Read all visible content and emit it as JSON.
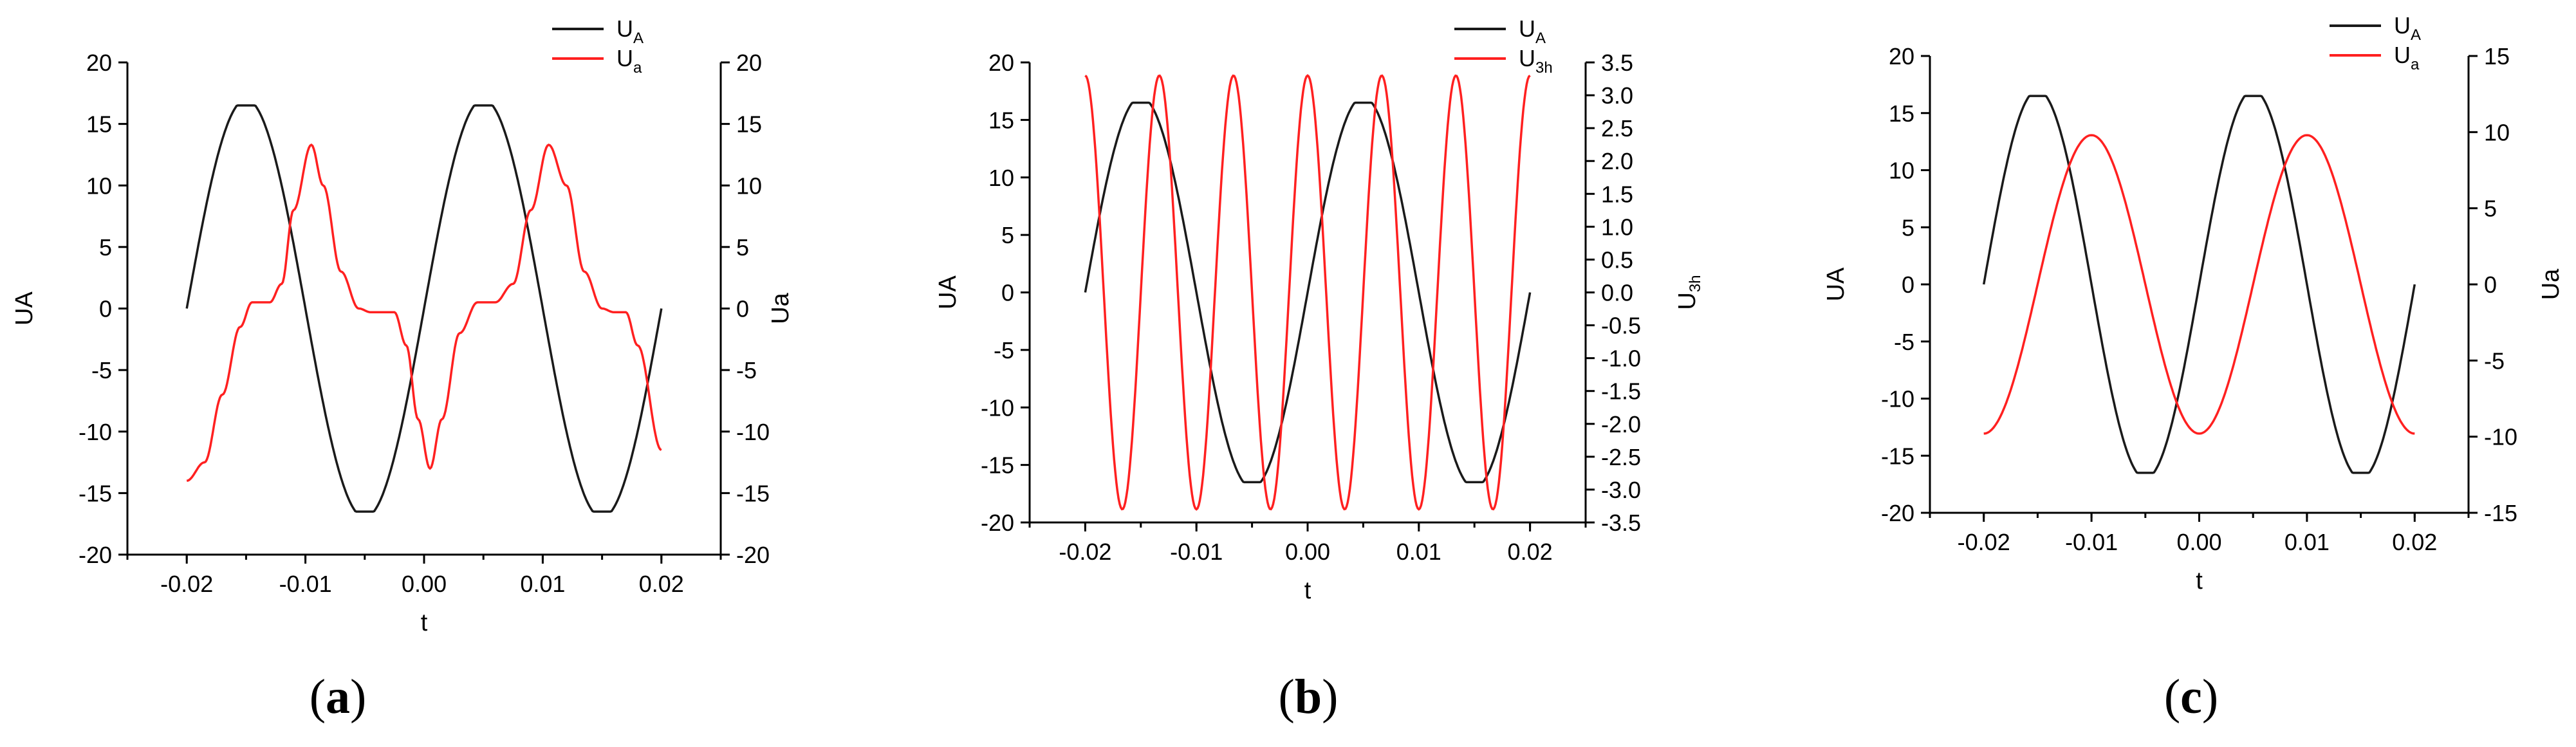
{
  "colors": {
    "series_A": "#1a1a1a",
    "series_B": "#ff2020",
    "axes": "#000000"
  },
  "chart_data": [
    {
      "panel": "(a)",
      "type": "line",
      "xlabel": "t",
      "ylabel_left": "UA",
      "ylabel_right": "Ua",
      "xlim": [
        -0.025,
        0.025
      ],
      "ylim_left": [
        -20,
        20
      ],
      "ylim_right": [
        -20,
        20
      ],
      "xticks": [
        "-0.02",
        "-0.01",
        "0.00",
        "0.01",
        "0.02"
      ],
      "yticks_left": [
        "-20",
        "-15",
        "-10",
        "-5",
        "0",
        "5",
        "10",
        "15",
        "20"
      ],
      "yticks_right": [
        "-20",
        "-15",
        "-10",
        "-5",
        "0",
        "5",
        "10",
        "15",
        "20"
      ],
      "legend": {
        "position": "top-right",
        "entries": [
          {
            "main": "U",
            "sub": "A"
          },
          {
            "main": "U",
            "sub": "a"
          }
        ]
      },
      "series": [
        {
          "axis": "left",
          "color": "#1a1a1a",
          "description": "UA = 17·sin(2π·50·(t+0.02)), plateau-clipped near peaks",
          "amplitude": 17,
          "frequency_hz": 50,
          "phase_offset_s": 0.02,
          "clip": 16.5
        },
        {
          "axis": "right",
          "color": "#ff2020",
          "description": "Ua ≈ -13·cos(2π·50·t) with flat steps near 0 around t ≈ -0.014 and -0.004",
          "points": [
            [
              -0.02,
              -14
            ],
            [
              -0.0185,
              -12.5
            ],
            [
              -0.017,
              -7
            ],
            [
              -0.0155,
              -1.5
            ],
            [
              -0.0145,
              0.5
            ],
            [
              -0.013,
              0.5
            ],
            [
              -0.012,
              2
            ],
            [
              -0.011,
              8
            ],
            [
              -0.0095,
              13.3
            ],
            [
              -0.0085,
              10
            ],
            [
              -0.007,
              3
            ],
            [
              -0.0055,
              0
            ],
            [
              -0.0045,
              -0.3
            ],
            [
              -0.0025,
              -0.3
            ],
            [
              -0.0015,
              -3
            ],
            [
              -0.0005,
              -9
            ],
            [
              0.0005,
              -13
            ],
            [
              0.0015,
              -9
            ],
            [
              0.003,
              -2
            ],
            [
              0.0045,
              0.5
            ],
            [
              0.006,
              0.5
            ],
            [
              0.0075,
              2
            ],
            [
              0.009,
              8
            ],
            [
              0.0105,
              13.3
            ],
            [
              0.012,
              10
            ],
            [
              0.0135,
              3
            ],
            [
              0.015,
              0
            ],
            [
              0.016,
              -0.3
            ],
            [
              0.017,
              -0.3
            ],
            [
              0.018,
              -3
            ],
            [
              0.02,
              -11.5
            ]
          ]
        }
      ]
    },
    {
      "panel": "(b)",
      "type": "line",
      "xlabel": "t",
      "ylabel_left": "UA",
      "ylabel_right": "U3h",
      "xlim": [
        -0.025,
        0.025
      ],
      "ylim_left": [
        -20,
        20
      ],
      "ylim_right": [
        -3.5,
        3.5
      ],
      "xticks": [
        "-0.02",
        "-0.01",
        "0.00",
        "0.01",
        "0.02"
      ],
      "yticks_left": [
        "-20",
        "-15",
        "-10",
        "-5",
        "0",
        "5",
        "10",
        "15",
        "20"
      ],
      "yticks_right": [
        "-3.5",
        "-3.0",
        "-2.5",
        "-2.0",
        "-1.5",
        "-1.0",
        "-0.5",
        "0.0",
        "0.5",
        "1.0",
        "1.5",
        "2.0",
        "2.5",
        "3.0",
        "3.5"
      ],
      "legend": {
        "position": "top-right",
        "entries": [
          {
            "main": "U",
            "sub": "A"
          },
          {
            "main": "U",
            "sub": "3h"
          }
        ]
      },
      "series": [
        {
          "axis": "left",
          "color": "#1a1a1a",
          "description": "UA = 17·sin(2π·50·(t+0.02)), plateau-clipped near peaks",
          "amplitude": 17,
          "frequency_hz": 50,
          "phase_offset_s": 0.02,
          "clip": 16.5
        },
        {
          "axis": "right",
          "color": "#ff2020",
          "description": "U3h ≈ 3.3·cos(2π·150·(t+0.02)), third harmonic",
          "amplitude": 3.3,
          "frequency_hz": 150,
          "phase_offset_s": 0.02
        }
      ]
    },
    {
      "panel": "(c)",
      "type": "line",
      "xlabel": "t",
      "ylabel_left": "UA",
      "ylabel_right": "Ua",
      "xlim": [
        -0.025,
        0.025
      ],
      "ylim_left": [
        -20,
        20
      ],
      "ylim_right": [
        -15,
        15
      ],
      "xticks": [
        "-0.02",
        "-0.01",
        "0.00",
        "0.01",
        "0.02"
      ],
      "yticks_left": [
        "-20",
        "-15",
        "-10",
        "-5",
        "0",
        "5",
        "10",
        "15",
        "20"
      ],
      "yticks_right": [
        "-15",
        "-10",
        "-5",
        "0",
        "5",
        "10",
        "15"
      ],
      "legend": {
        "position": "top-right",
        "entries": [
          {
            "main": "U",
            "sub": "A"
          },
          {
            "main": "U",
            "sub": "a"
          }
        ]
      },
      "series": [
        {
          "axis": "left",
          "color": "#1a1a1a",
          "description": "UA = 17·sin(2π·50·(t+0.02)), plateau-clipped near peaks",
          "amplitude": 17,
          "frequency_hz": 50,
          "phase_offset_s": 0.02,
          "clip": 16.5
        },
        {
          "axis": "right",
          "color": "#ff2020",
          "description": "Ua ≈ -9.8·cos(2π·50·t)",
          "amplitude": -9.8,
          "frequency_hz": 50,
          "phase_offset_s": 0,
          "func": "cos"
        }
      ]
    }
  ],
  "captions": [
    {
      "open": "(",
      "letter": "a",
      "close": ")"
    },
    {
      "open": "(",
      "letter": "b",
      "close": ")"
    },
    {
      "open": "(",
      "letter": "c",
      "close": ")"
    }
  ]
}
